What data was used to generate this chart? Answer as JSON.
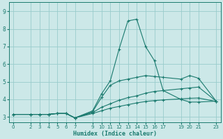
{
  "xlabel": "Humidex (Indice chaleur)",
  "bg_color": "#cce8e8",
  "grid_color": "#99cccc",
  "line_color": "#1a7a6e",
  "xlim": [
    -0.5,
    23.5
  ],
  "ylim": [
    2.7,
    9.5
  ],
  "xticks": [
    0,
    2,
    3,
    4,
    5,
    6,
    7,
    9,
    10,
    11,
    12,
    13,
    14,
    15,
    16,
    17,
    19,
    20,
    21,
    23
  ],
  "yticks": [
    3,
    4,
    5,
    6,
    7,
    8,
    9
  ],
  "lines": [
    {
      "x": [
        0,
        2,
        3,
        4,
        5,
        6,
        7,
        9,
        10,
        11,
        12,
        13,
        14,
        15,
        16,
        17,
        19,
        20,
        21,
        23
      ],
      "y": [
        3.15,
        3.15,
        3.15,
        3.15,
        3.2,
        3.2,
        2.95,
        3.35,
        4.3,
        5.05,
        6.85,
        8.45,
        8.55,
        7.0,
        6.2,
        4.5,
        4.0,
        3.85,
        3.85,
        3.9
      ]
    },
    {
      "x": [
        0,
        2,
        3,
        4,
        5,
        6,
        7,
        9,
        10,
        11,
        12,
        13,
        14,
        15,
        16,
        17,
        19,
        20,
        21,
        23
      ],
      "y": [
        3.15,
        3.15,
        3.15,
        3.15,
        3.2,
        3.2,
        2.95,
        3.3,
        4.1,
        4.8,
        5.05,
        5.15,
        5.25,
        5.35,
        5.3,
        5.25,
        5.15,
        5.35,
        5.2,
        3.9
      ]
    },
    {
      "x": [
        0,
        2,
        3,
        4,
        5,
        6,
        7,
        9,
        10,
        11,
        12,
        13,
        14,
        15,
        16,
        17,
        19,
        20,
        21,
        23
      ],
      "y": [
        3.15,
        3.15,
        3.15,
        3.15,
        3.2,
        3.2,
        2.95,
        3.25,
        3.55,
        3.75,
        3.95,
        4.1,
        4.2,
        4.35,
        4.45,
        4.5,
        4.6,
        4.65,
        4.7,
        3.9
      ]
    },
    {
      "x": [
        0,
        2,
        3,
        4,
        5,
        6,
        7,
        9,
        10,
        11,
        12,
        13,
        14,
        15,
        16,
        17,
        19,
        20,
        21,
        23
      ],
      "y": [
        3.15,
        3.15,
        3.15,
        3.15,
        3.2,
        3.2,
        2.95,
        3.2,
        3.35,
        3.5,
        3.6,
        3.7,
        3.8,
        3.88,
        3.93,
        3.97,
        4.03,
        4.06,
        4.08,
        3.88
      ]
    }
  ]
}
